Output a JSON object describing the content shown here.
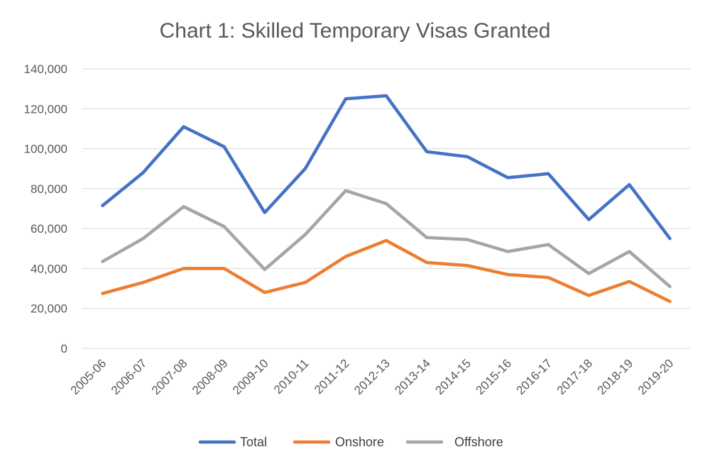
{
  "chart_data": {
    "type": "line",
    "title": "Chart 1: Skilled Temporary Visas Granted",
    "xlabel": "",
    "ylabel": "",
    "ylim": [
      0,
      140000
    ],
    "yticks": [
      0,
      20000,
      40000,
      60000,
      80000,
      100000,
      120000,
      140000
    ],
    "ytick_labels": [
      "0",
      "20,000",
      "40,000",
      "60,000",
      "80,000",
      "100,000",
      "120,000",
      "140,000"
    ],
    "grid": true,
    "legend_position": "bottom",
    "categories": [
      "2005-06",
      "2006-07",
      "2007-08",
      "2008-09",
      "2009-10",
      "2010-11",
      "2011-12",
      "2012-13",
      "2013-14",
      "2014-15",
      "2015-16",
      "2016-17",
      "2017-18",
      "2018-19",
      "2019-20"
    ],
    "series": [
      {
        "name": "Total",
        "color": "#4472C4",
        "values": [
          71500,
          88000,
          111000,
          101000,
          68000,
          90000,
          125000,
          126500,
          98500,
          96000,
          85500,
          87500,
          64500,
          82000,
          55000
        ]
      },
      {
        "name": "Onshore",
        "color": "#ED7D31",
        "values": [
          27500,
          33000,
          40000,
          40000,
          28000,
          33000,
          46000,
          54000,
          43000,
          41500,
          37000,
          35500,
          26500,
          33500,
          23500
        ]
      },
      {
        "name": "Offshore",
        "color": "#A5A5A5",
        "values": [
          43500,
          55000,
          71000,
          61000,
          39500,
          57000,
          79000,
          72500,
          55500,
          54500,
          48500,
          52000,
          37500,
          48500,
          31000
        ]
      }
    ]
  }
}
